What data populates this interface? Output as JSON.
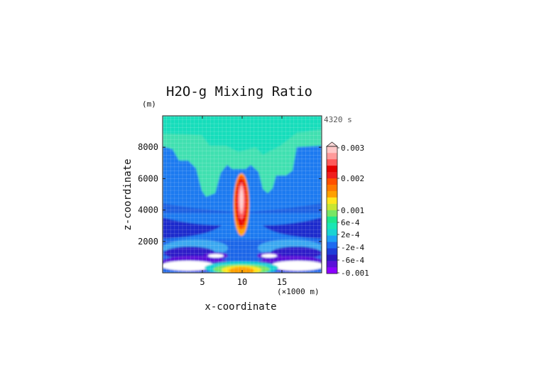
{
  "chart_data": {
    "type": "heatmap",
    "title": "H2O-g Mixing Ratio",
    "time_label": "4320 s",
    "xlabel": "x-coordinate",
    "x_unit": "(×1000 m)",
    "ylabel": "z-coordinate",
    "y_unit": "(m)",
    "xlim": [
      0,
      20
    ],
    "ylim": [
      0,
      10000
    ],
    "x_ticks": [
      5,
      10,
      15
    ],
    "y_ticks": [
      2000,
      4000,
      6000,
      8000
    ],
    "colorbar": {
      "labels": [
        {
          "value": 0.003,
          "text": "0.003"
        },
        {
          "value": 0.002,
          "text": "0.002"
        },
        {
          "value": 0.001,
          "text": "0.001"
        },
        {
          "value": 0.0006,
          "text": "6e-4"
        },
        {
          "value": 0.0002,
          "text": "2e-4"
        },
        {
          "value": -0.0002,
          "text": "-2e-4"
        },
        {
          "value": -0.0006,
          "text": "-6e-4"
        },
        {
          "value": -0.001,
          "text": "-0.001"
        }
      ],
      "colors": [
        "#8b00ff",
        "#5a10d8",
        "#2a18c0",
        "#1e3cd8",
        "#1e6af0",
        "#1ea0f5",
        "#19d3d3",
        "#19e6b4",
        "#1ee68c",
        "#78e664",
        "#c8e632",
        "#ffe61e",
        "#ffa000",
        "#ff7800",
        "#ff5000",
        "#f01e1e",
        "#e60000",
        "#ff5a5a",
        "#ff9a9a",
        "#ffc8c8"
      ],
      "extend": "max"
    },
    "grid": true
  }
}
